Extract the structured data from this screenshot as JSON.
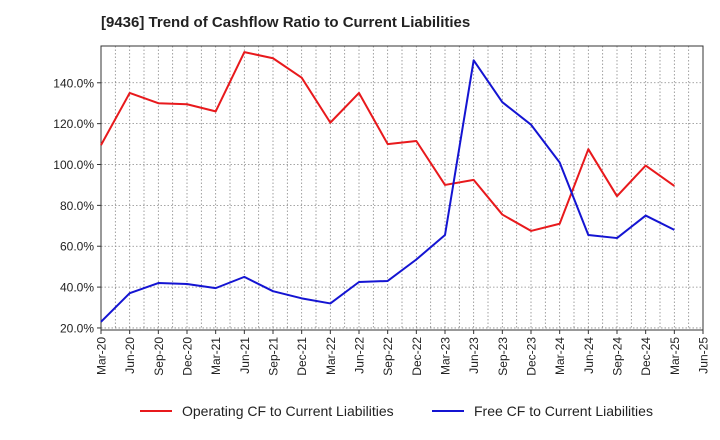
{
  "chart_data": {
    "type": "line",
    "title": "[9436]  Trend of Cashflow Ratio to Current Liabilities",
    "xlabel": "",
    "ylabel": "",
    "x_ticks": [
      "Mar-20",
      "Jun-20",
      "Sep-20",
      "Dec-20",
      "Mar-21",
      "Jun-21",
      "Sep-21",
      "Dec-21",
      "Mar-22",
      "Jun-22",
      "Sep-22",
      "Dec-22",
      "Mar-23",
      "Jun-23",
      "Sep-23",
      "Dec-23",
      "Mar-24",
      "Jun-24",
      "Sep-24",
      "Dec-24",
      "Mar-25",
      "Jun-25"
    ],
    "y_ticks": [
      "20.0%",
      "40.0%",
      "60.0%",
      "80.0%",
      "100.0%",
      "120.0%",
      "140.0%"
    ],
    "y_tick_values": [
      20,
      40,
      60,
      80,
      100,
      120,
      140
    ],
    "ylim": [
      19,
      158
    ],
    "grid": true,
    "legend_position": "bottom",
    "series": [
      {
        "name": "Operating CF to Current Liabilities",
        "color": "#e8191c",
        "x": [
          "Mar-20",
          "Jun-20",
          "Sep-20",
          "Dec-20",
          "Mar-21",
          "Jun-21",
          "Sep-21",
          "Dec-21",
          "Mar-22",
          "Jun-22",
          "Sep-22",
          "Dec-22",
          "Mar-23",
          "Jun-23",
          "Sep-23",
          "Dec-23",
          "Mar-24",
          "Jun-24",
          "Sep-24",
          "Dec-24",
          "Mar-25"
        ],
        "values": [
          109.5,
          135,
          130,
          129.5,
          126,
          155,
          152,
          142.5,
          120.5,
          135,
          110,
          111.5,
          90,
          92.5,
          75.5,
          67.5,
          71,
          107.5,
          84.5,
          99.5,
          89.5
        ]
      },
      {
        "name": "Free CF to Current Liabilities",
        "color": "#1414d2",
        "x": [
          "Mar-20",
          "Jun-20",
          "Sep-20",
          "Dec-20",
          "Mar-21",
          "Jun-21",
          "Sep-21",
          "Dec-21",
          "Mar-22",
          "Jun-22",
          "Sep-22",
          "Dec-22",
          "Mar-23",
          "Jun-23",
          "Sep-23",
          "Dec-23",
          "Mar-24",
          "Jun-24",
          "Sep-24",
          "Dec-24",
          "Mar-25"
        ],
        "values": [
          23,
          37,
          42,
          41.5,
          39.5,
          45,
          38,
          34.5,
          32,
          42.5,
          43,
          53.5,
          65.5,
          151,
          130.5,
          119.5,
          101,
          65.5,
          64,
          75,
          68
        ]
      }
    ]
  }
}
